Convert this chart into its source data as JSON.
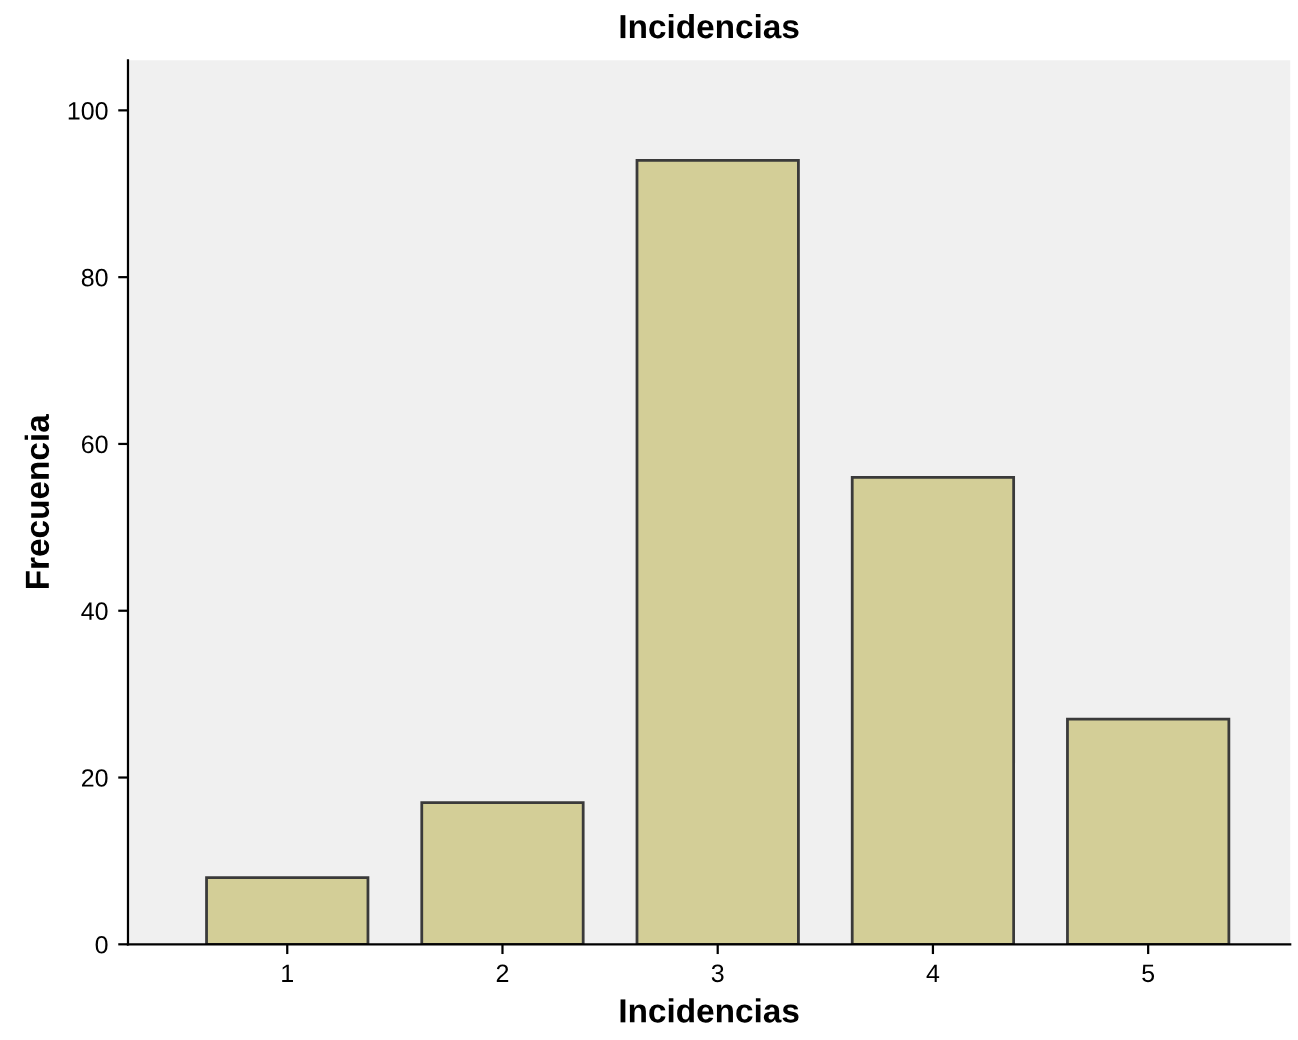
{
  "chart_data": {
    "type": "bar",
    "title": "Incidencias",
    "xlabel": "Incidencias",
    "ylabel": "Frecuencia",
    "categories": [
      "1",
      "2",
      "3",
      "4",
      "5"
    ],
    "values": [
      8,
      17,
      94,
      56,
      27
    ],
    "color": "#d3ce97",
    "ylim": [
      0,
      106
    ],
    "yticks": [
      0,
      20,
      40,
      60,
      80,
      100
    ],
    "grid": false,
    "legend": false
  }
}
